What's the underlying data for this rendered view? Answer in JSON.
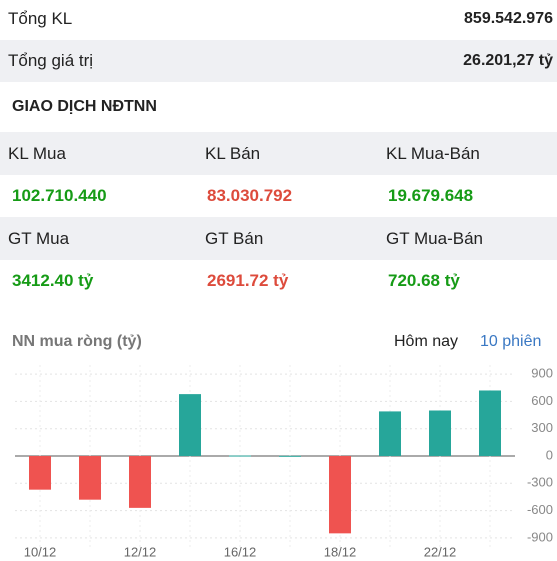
{
  "summary": {
    "rows": [
      [
        "Tổng KL",
        "859.542.976"
      ],
      [
        "Tổng giá trị",
        "26.201,27 tỷ"
      ]
    ]
  },
  "foreign": {
    "title": "GIAO DỊCH NĐTNN",
    "rows": [
      {
        "labels": [
          "KL Mua",
          "KL Bán",
          "KL Mua-Bán"
        ],
        "values": [
          "102.710.440",
          "83.030.792",
          "19.679.648"
        ]
      },
      {
        "labels": [
          "GT Mua",
          "GT Bán",
          "GT Mua-Bán"
        ],
        "values": [
          "3412.40 tỷ",
          "2691.72 tỷ",
          "720.68 tỷ"
        ]
      }
    ]
  },
  "tabs": [
    "Hôm nay",
    "10 phiên"
  ],
  "chart_data": {
    "type": "bar",
    "title": "NN mua ròng (tỷ)",
    "categories": [
      "10/12",
      null,
      "12/12",
      null,
      "16/12",
      null,
      "18/12",
      null,
      "22/12",
      null
    ],
    "values": [
      -370,
      -480,
      -570,
      680,
      5,
      2,
      -850,
      490,
      500,
      720
    ],
    "positive_color": "#26a69a",
    "negative_color": "#ef5350",
    "ylim": [
      -1000,
      1000
    ],
    "yticks": [
      900,
      600,
      300,
      0,
      -300,
      -600,
      -900
    ],
    "grid": true
  }
}
